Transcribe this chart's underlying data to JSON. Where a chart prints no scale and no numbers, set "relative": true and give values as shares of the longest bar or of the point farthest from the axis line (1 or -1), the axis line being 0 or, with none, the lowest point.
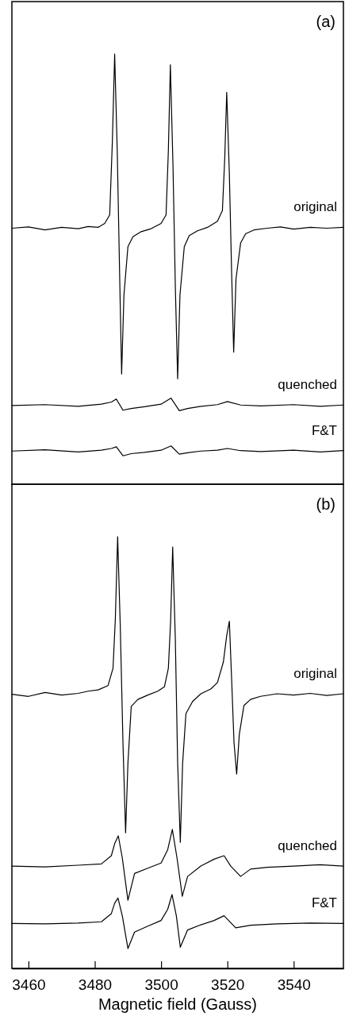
{
  "chart_data": [
    {
      "type": "line",
      "title": "(a)",
      "relative": true,
      "xlim": [
        3455,
        3555
      ],
      "tick_labels": false,
      "x": [
        3455,
        3460,
        3465,
        3470,
        3475,
        3478,
        3481,
        3483,
        3484.5,
        3485.3,
        3486,
        3486.8,
        3487.5,
        3488.1,
        3488.8,
        3490,
        3491.5,
        3494,
        3497,
        3500,
        3501.5,
        3502.2,
        3502.8,
        3503.6,
        3504.3,
        3505,
        3505.7,
        3507,
        3508.5,
        3511,
        3514,
        3517,
        3518.5,
        3519.2,
        3519.8,
        3520.6,
        3521.3,
        3521.9,
        3522.6,
        3524,
        3525.5,
        3528,
        3532,
        3536,
        3540,
        3545,
        3550,
        3555
      ],
      "series": [
        {
          "name": "original",
          "color": "#000000",
          "values": [
            0.595,
            0.598,
            0.591,
            0.597,
            0.594,
            0.599,
            0.597,
            0.606,
            0.626,
            0.795,
            1.0,
            0.767,
            0.486,
            0.256,
            0.44,
            0.552,
            0.575,
            0.587,
            0.594,
            0.606,
            0.626,
            0.776,
            0.975,
            0.738,
            0.458,
            0.245,
            0.44,
            0.552,
            0.578,
            0.589,
            0.597,
            0.611,
            0.636,
            0.757,
            0.911,
            0.72,
            0.486,
            0.307,
            0.477,
            0.561,
            0.582,
            0.591,
            0.595,
            0.598,
            0.593,
            0.597,
            0.595,
            0.597
          ]
        },
        {
          "name": "quenched",
          "color": "#000000",
          "x": [
            3455,
            3465,
            3475,
            3482,
            3485,
            3486.5,
            3488.5,
            3491,
            3495,
            3500,
            3503,
            3505.5,
            3508,
            3512,
            3517,
            3520,
            3524,
            3530,
            3540,
            3548,
            3555
          ],
          "values": [
            0.183,
            0.185,
            0.181,
            0.186,
            0.191,
            0.198,
            0.172,
            0.176,
            0.18,
            0.186,
            0.2,
            0.171,
            0.176,
            0.181,
            0.185,
            0.192,
            0.184,
            0.182,
            0.185,
            0.181,
            0.184
          ]
        },
        {
          "name": "F&T",
          "color": "#000000",
          "x": [
            3455,
            3465,
            3475,
            3482,
            3485,
            3486.5,
            3488.5,
            3491,
            3495,
            3500,
            3503,
            3505.5,
            3508,
            3512,
            3517,
            3520,
            3524,
            3530,
            3540,
            3548,
            3555
          ],
          "values": [
            0.077,
            0.08,
            0.075,
            0.079,
            0.083,
            0.087,
            0.066,
            0.071,
            0.074,
            0.079,
            0.089,
            0.07,
            0.073,
            0.077,
            0.079,
            0.083,
            0.078,
            0.076,
            0.079,
            0.075,
            0.078
          ]
        }
      ]
    },
    {
      "type": "line",
      "title": "(b)",
      "xlabel": "Magnetic field (Gauss)",
      "relative": true,
      "xlim": [
        3455,
        3555
      ],
      "xticks": [
        3460,
        3480,
        3500,
        3520,
        3540
      ],
      "tick_labels": "x",
      "x": [
        3455,
        3460,
        3465,
        3470,
        3475,
        3478,
        3481,
        3484,
        3485.5,
        3486.2,
        3486.9,
        3487.7,
        3488.5,
        3489.3,
        3490,
        3491,
        3493,
        3496,
        3499,
        3501,
        3502.2,
        3502.9,
        3503.5,
        3504.3,
        3505,
        3505.8,
        3506.5,
        3507.5,
        3509.5,
        3512,
        3515,
        3517,
        3518.8,
        3519.8,
        3520.6,
        3521.3,
        3522,
        3522.8,
        3523.6,
        3525,
        3527,
        3530,
        3535,
        3540,
        3545,
        3550,
        3555
      ],
      "series": [
        {
          "name": "original",
          "color": "#000000",
          "values": [
            0.635,
            0.63,
            0.639,
            0.633,
            0.637,
            0.642,
            0.645,
            0.655,
            0.695,
            0.809,
            1.0,
            0.79,
            0.523,
            0.314,
            0.475,
            0.607,
            0.623,
            0.633,
            0.642,
            0.652,
            0.695,
            0.809,
            0.976,
            0.762,
            0.475,
            0.292,
            0.475,
            0.59,
            0.618,
            0.636,
            0.647,
            0.662,
            0.71,
            0.771,
            0.804,
            0.666,
            0.523,
            0.45,
            0.542,
            0.609,
            0.623,
            0.63,
            0.636,
            0.633,
            0.637,
            0.632,
            0.636
          ]
        },
        {
          "name": "quenched",
          "color": "#000000",
          "x": [
            3455,
            3465,
            3475,
            3482,
            3485,
            3486,
            3487.1,
            3488.3,
            3490,
            3492,
            3496,
            3500,
            3502,
            3503.4,
            3504.8,
            3506.4,
            3508,
            3512,
            3516,
            3519,
            3521,
            3524,
            3527,
            3532,
            3540,
            3548,
            3555
          ],
          "values": [
            0.237,
            0.235,
            0.239,
            0.242,
            0.261,
            0.289,
            0.307,
            0.256,
            0.158,
            0.22,
            0.232,
            0.244,
            0.275,
            0.322,
            0.256,
            0.167,
            0.213,
            0.237,
            0.253,
            0.261,
            0.237,
            0.213,
            0.23,
            0.234,
            0.237,
            0.24,
            0.237
          ]
        },
        {
          "name": "F&T",
          "color": "#000000",
          "x": [
            3455,
            3465,
            3475,
            3482,
            3485,
            3486,
            3487,
            3488.3,
            3490,
            3492,
            3496,
            3500,
            3502,
            3503.3,
            3504.6,
            3505.8,
            3508,
            3512,
            3516,
            3519,
            3522.5,
            3527,
            3535,
            3545,
            3555
          ],
          "values": [
            0.104,
            0.103,
            0.105,
            0.108,
            0.127,
            0.151,
            0.163,
            0.122,
            0.046,
            0.084,
            0.098,
            0.111,
            0.137,
            0.171,
            0.122,
            0.049,
            0.089,
            0.101,
            0.111,
            0.122,
            0.094,
            0.1,
            0.103,
            0.105,
            0.104
          ]
        }
      ]
    }
  ]
}
